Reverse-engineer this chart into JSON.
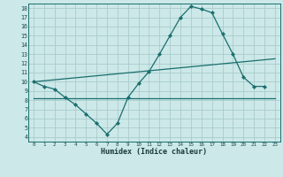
{
  "xlabel": "Humidex (Indice chaleur)",
  "bg_color": "#cce8e8",
  "grid_color": "#aacccc",
  "line_color": "#1a6e6e",
  "xlim": [
    -0.5,
    23.5
  ],
  "ylim": [
    3.5,
    18.5
  ],
  "yticks": [
    4,
    5,
    6,
    7,
    8,
    9,
    10,
    11,
    12,
    13,
    14,
    15,
    16,
    17,
    18
  ],
  "xticks": [
    0,
    1,
    2,
    3,
    4,
    5,
    6,
    7,
    8,
    9,
    10,
    11,
    12,
    13,
    14,
    15,
    16,
    17,
    18,
    19,
    20,
    21,
    22,
    23
  ],
  "line1_x": [
    0,
    1,
    2,
    3,
    4,
    5,
    6,
    7,
    8,
    9,
    10,
    11,
    12,
    13,
    14,
    15,
    16,
    17,
    18,
    19,
    20,
    21,
    22,
    23
  ],
  "line1_y": [
    10.0,
    9.5,
    9.2,
    8.3,
    7.5,
    6.5,
    5.5,
    4.3,
    5.5,
    8.3,
    9.8,
    11.1,
    13.0,
    15.0,
    17.0,
    18.2,
    17.9,
    17.5,
    15.2,
    13.0,
    10.5,
    9.5,
    9.5,
    null
  ],
  "line2_x": [
    0,
    23
  ],
  "line2_y": [
    10.0,
    12.5
  ],
  "line3_x": [
    0,
    23
  ],
  "line3_y": [
    8.2,
    8.2
  ]
}
